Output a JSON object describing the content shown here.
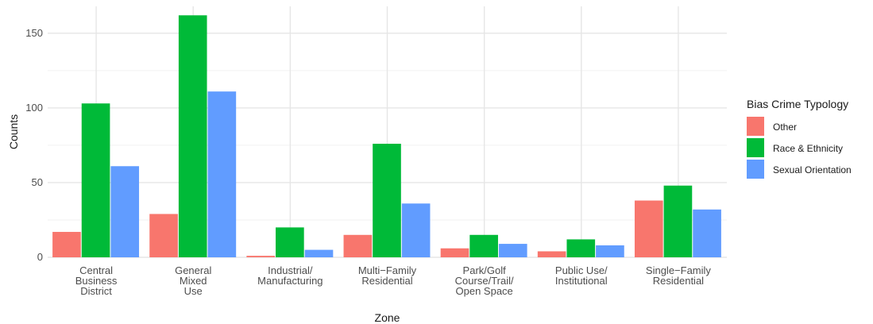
{
  "chart_data": {
    "type": "bar",
    "title": "",
    "xlabel": "Zone",
    "ylabel": "Counts",
    "ylim": [
      0,
      168
    ],
    "yticks": [
      0,
      50,
      100,
      150
    ],
    "grid": true,
    "legend_position": "right",
    "legend_title": "Bias Crime Typology",
    "categories": [
      [
        "Central",
        "Business",
        "District"
      ],
      [
        "General",
        "Mixed",
        "Use"
      ],
      [
        "Industrial/",
        "Manufacturing"
      ],
      [
        "Multi−Family",
        "Residential"
      ],
      [
        "Park/Golf",
        "Course/Trail/",
        "Open Space"
      ],
      [
        "Public Use/",
        "Institutional"
      ],
      [
        "Single−Family",
        "Residential"
      ]
    ],
    "series": [
      {
        "name": "Other",
        "color": "#F8766D",
        "values": [
          17,
          29,
          1,
          15,
          6,
          4,
          38
        ]
      },
      {
        "name": "Race & Ethnicity",
        "color": "#00BA38",
        "values": [
          103,
          162,
          20,
          76,
          15,
          12,
          48
        ]
      },
      {
        "name": "Sexual Orientation",
        "color": "#619CFF",
        "values": [
          61,
          111,
          5,
          36,
          9,
          8,
          32
        ]
      }
    ]
  }
}
